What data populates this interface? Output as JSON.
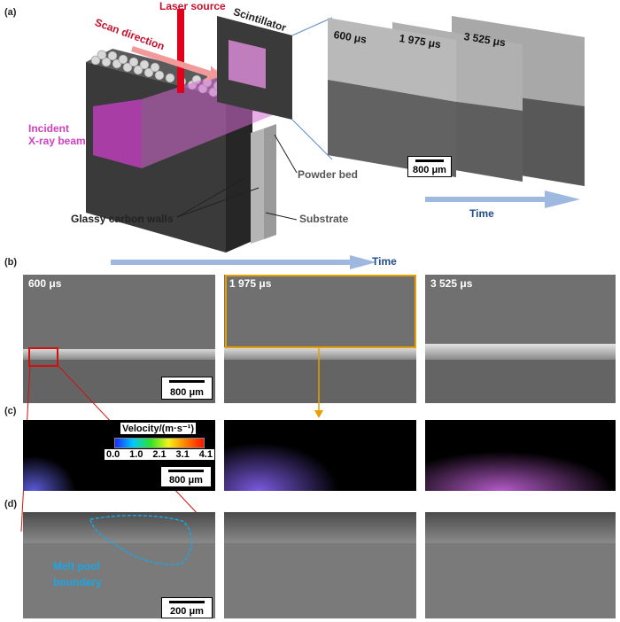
{
  "panels": {
    "a": "(a)",
    "b": "(b)",
    "c": "(c)",
    "d": "(d)"
  },
  "schematic": {
    "laser_source": "Laser source",
    "scan_direction": "Scan direction",
    "scintillator": "Scintillator",
    "incident_beam_line1": "Incident",
    "incident_beam_line2": "X-ray beam",
    "powder_bed": "Powder bed",
    "substrate": "Substrate",
    "glassy_carbon_walls": "Glassy carbon walls"
  },
  "time_label": "Time",
  "frames": {
    "t1": "600 μs",
    "t2": "1 975 μs",
    "t3": "3 525 μs"
  },
  "scale_bars": {
    "a": "800 μm",
    "b": "800 μm",
    "c": "800 μm",
    "d": "200 μm"
  },
  "velocity": {
    "title": "Velocity/(m·s⁻¹)",
    "ticks": [
      "0.0",
      "1.0",
      "2.1",
      "3.1",
      "4.1"
    ]
  },
  "melt_pool": {
    "line1": "Melt pool",
    "line2": "boundary"
  },
  "colors": {
    "laser": "#e0001b",
    "beam": "#c43ec0",
    "time_arrow": "#9fb8e0",
    "highlight": "#e8a000",
    "zoom_box": "#d21010",
    "melt_pool": "#1aa6e6"
  }
}
